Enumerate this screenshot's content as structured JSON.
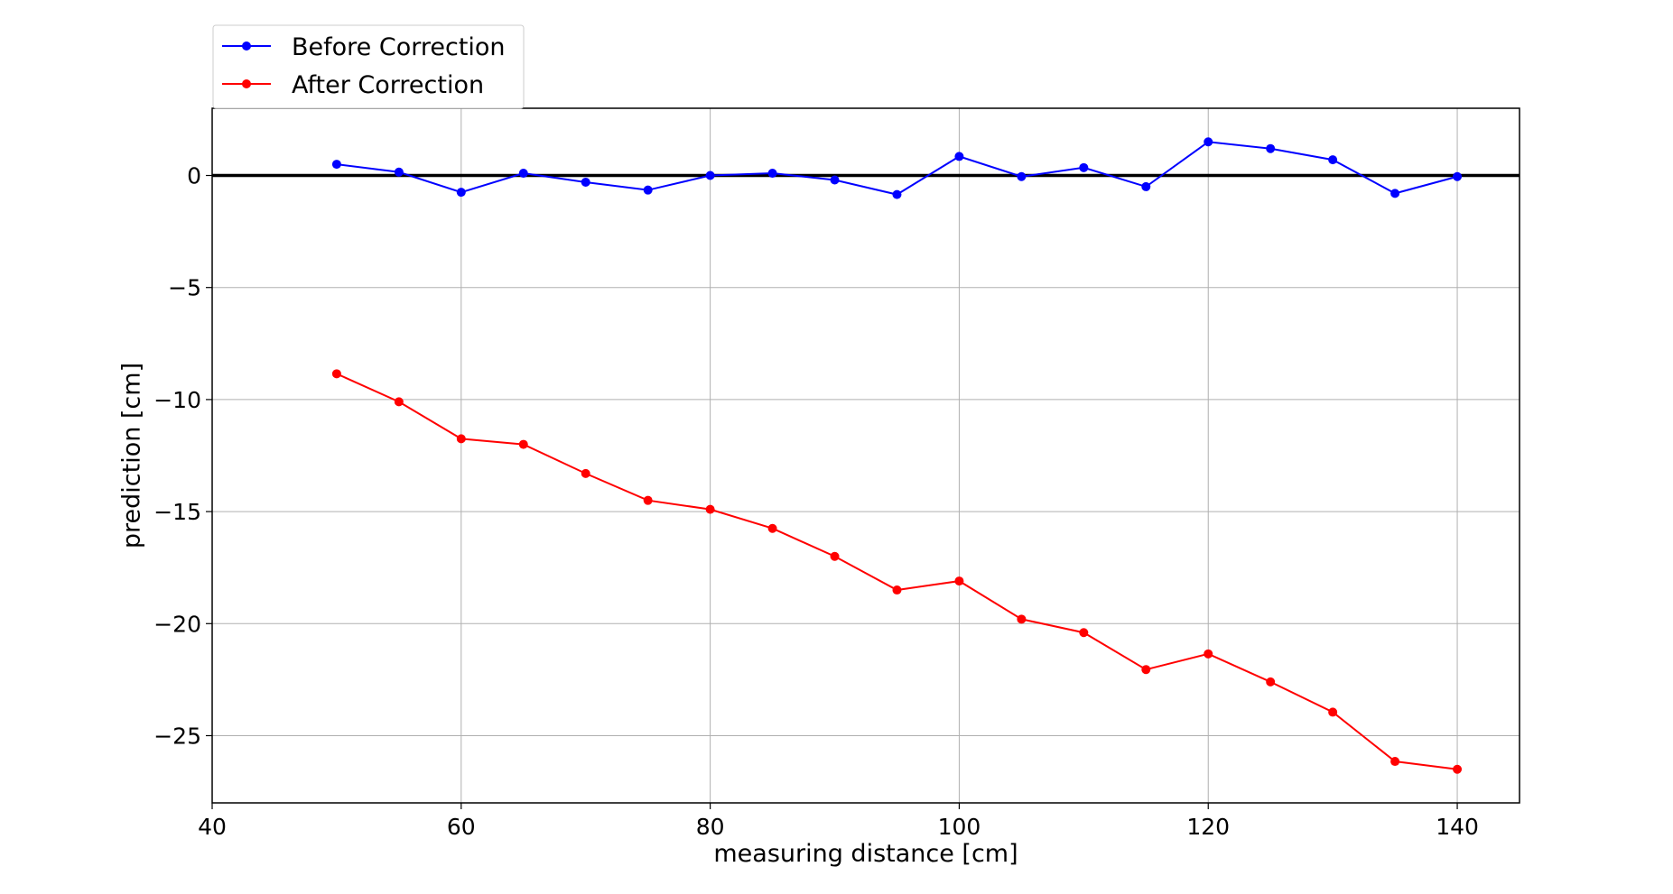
{
  "chart_data": {
    "type": "line",
    "title": "",
    "xlabel": "measuring distance [cm]",
    "ylabel": "prediction [cm]",
    "xlim": [
      40,
      145
    ],
    "ylim": [
      -28,
      3
    ],
    "xticks": [
      40,
      60,
      80,
      100,
      120,
      140
    ],
    "xtick_labels": [
      "40",
      "60",
      "80",
      "100",
      "120",
      "140"
    ],
    "yticks": [
      0,
      -5,
      -10,
      -15,
      -20,
      -25
    ],
    "ytick_labels": [
      "0",
      "−5",
      "−10",
      "−15",
      "−20",
      "−25"
    ],
    "grid": true,
    "reference_line": 0,
    "legend_position": "top-left, above plot",
    "x": [
      50,
      55,
      60,
      65,
      70,
      75,
      80,
      85,
      90,
      95,
      100,
      105,
      110,
      115,
      120,
      125,
      130,
      135,
      140
    ],
    "series": [
      {
        "name": "Before Correction",
        "color": "#0000ff",
        "values": [
          0.5,
          0.15,
          -0.75,
          0.1,
          -0.3,
          -0.65,
          0.0,
          0.1,
          -0.2,
          -0.85,
          0.85,
          -0.05,
          0.35,
          -0.5,
          1.5,
          1.2,
          0.7,
          -0.8,
          -0.05
        ]
      },
      {
        "name": "After Correction",
        "color": "#ff0000",
        "values": [
          -8.85,
          -10.1,
          -11.75,
          -12.0,
          -13.3,
          -14.5,
          -14.9,
          -15.75,
          -17.0,
          -18.5,
          -18.1,
          -19.8,
          -20.4,
          -22.05,
          -21.35,
          -22.6,
          -23.95,
          -26.15,
          -26.5
        ]
      }
    ]
  }
}
